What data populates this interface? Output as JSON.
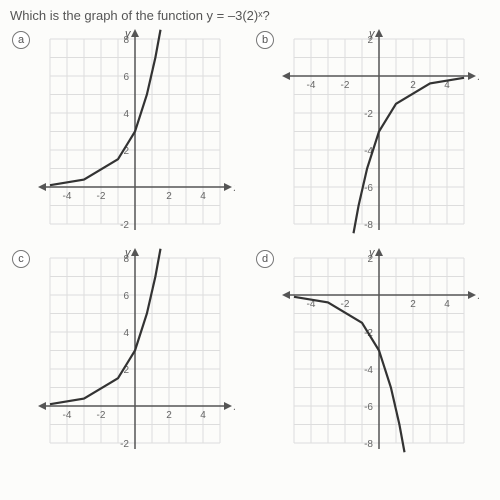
{
  "question": "Which is the graph of the function y = –3(2)ˣ?",
  "options": [
    "a",
    "b",
    "c",
    "d"
  ],
  "charts": {
    "a": {
      "y_axis": {
        "label": "y",
        "ticks": [
          -2,
          2,
          4,
          6,
          8
        ],
        "min": -2,
        "max": 8
      },
      "x_axis": {
        "label": "x",
        "ticks": [
          -4,
          -2,
          2,
          4
        ],
        "min": -5,
        "max": 5
      },
      "curve": [
        [
          -5,
          0.1
        ],
        [
          -3,
          0.4
        ],
        [
          -1,
          1.5
        ],
        [
          0,
          3
        ],
        [
          0.7,
          5
        ],
        [
          1.2,
          7
        ],
        [
          1.5,
          8.5
        ]
      ]
    },
    "b": {
      "y_axis": {
        "label": "y",
        "ticks": [
          -8,
          -6,
          -4,
          -2,
          2
        ],
        "min": -8,
        "max": 2
      },
      "x_axis": {
        "label": "x",
        "ticks": [
          -4,
          -2,
          2,
          4
        ],
        "min": -5,
        "max": 5
      },
      "curve": [
        [
          5,
          -0.1
        ],
        [
          3,
          -0.4
        ],
        [
          1,
          -1.5
        ],
        [
          0,
          -3
        ],
        [
          -0.7,
          -5
        ],
        [
          -1.2,
          -7
        ],
        [
          -1.5,
          -8.5
        ]
      ]
    },
    "c": {
      "y_axis": {
        "label": "y",
        "ticks": [
          -2,
          2,
          4,
          6,
          8
        ],
        "min": -2,
        "max": 8
      },
      "x_axis": {
        "label": "x",
        "ticks": [
          -4,
          -2,
          2,
          4
        ],
        "min": -5,
        "max": 5
      },
      "curve": [
        [
          -5,
          0.1
        ],
        [
          -3,
          0.4
        ],
        [
          -1,
          1.5
        ],
        [
          0,
          3
        ],
        [
          0.7,
          5
        ],
        [
          1.2,
          7
        ],
        [
          1.5,
          8.5
        ]
      ]
    },
    "d": {
      "y_axis": {
        "label": "y",
        "ticks": [
          -8,
          -6,
          -4,
          -2,
          2
        ],
        "min": -8,
        "max": 2
      },
      "x_axis": {
        "label": "x",
        "ticks": [
          -4,
          -2,
          2,
          4
        ],
        "min": -5,
        "max": 5
      },
      "curve": [
        [
          -5,
          -0.1
        ],
        [
          -3,
          -0.4
        ],
        [
          -1,
          -1.5
        ],
        [
          0,
          -3
        ],
        [
          0.7,
          -5
        ],
        [
          1.2,
          -7
        ],
        [
          1.5,
          -8.5
        ]
      ]
    }
  },
  "grid_color": "#ddd",
  "axis_color": "#555",
  "curve_color": "#333",
  "bg_color": "#fcfcfa"
}
